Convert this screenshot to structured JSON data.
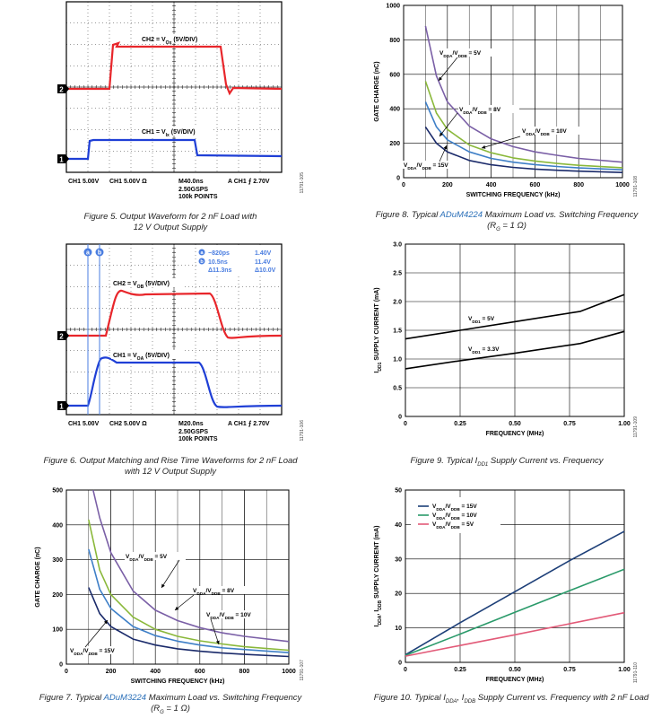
{
  "fig5": {
    "ch2_label": "CH2 = V",
    "ch2_sub": "Ox",
    "ch2_rest": " (5V/DIV)",
    "ch1_label": "CH1 = V",
    "ch1_sub": "Ix",
    "ch1_rest": " (5V/DIV)",
    "marker2": "2",
    "marker1": "1",
    "footer_ch1": "CH1  5.00V",
    "footer_ch2": "CH1  5.00V  Ω",
    "footer_time": "M40.0ns",
    "footer_trig": "A  CH1 ⨍ 2.70V",
    "footer_rate": "2.50GSPS",
    "footer_points": "100k POINTS",
    "side_id": "11791-105",
    "caption_line1": "Figure 5. Output Waveform for 2 nF Load with",
    "caption_line2": "12 V Output Supply",
    "colors": {
      "ch2": "#e8262b",
      "ch1": "#1f3fd6"
    }
  },
  "fig6": {
    "ch2_label": "CH2 = V",
    "ch2_sub": "OB",
    "ch2_rest": " (5V/DIV)",
    "ch1_label": "CH1 = V",
    "ch1_sub": "OA",
    "ch1_rest": " (5V/DIV)",
    "cursor_a": "a",
    "cursor_b": "b",
    "meas_a_time": "−820ps",
    "meas_a_volt": "1.40V",
    "meas_b_time": "10.5ns",
    "meas_b_volt": "11.4V",
    "meas_delta_time": "Δ11.3ns",
    "meas_delta_volt": "Δ10.0V",
    "marker2": "2",
    "marker1": "1",
    "footer_ch1": "CH1  5.00V",
    "footer_ch2": "CH2  5.00V  Ω",
    "footer_time": "M20.0ns",
    "footer_trig": "A  CH1 ⨍ 2.70V",
    "footer_rate": "2.50GSPS",
    "footer_points": "100k POINTS",
    "side_id": "11791-106",
    "caption_line1": "Figure 6. Output Matching and Rise Time Waveforms for 2 nF Load",
    "caption_line2": "with 12 V Output Supply",
    "colors": {
      "ch2": "#e8262b",
      "ch1": "#1f3fd6",
      "cursor": "#4a7de0"
    }
  },
  "fig7": {
    "caption_prefix": "Figure 7. Typical ",
    "caption_link": "ADuM3224",
    "caption_suffix": " Maximum Load vs. Switching Frequency",
    "caption_line2": "(R",
    "caption_line2_sub": "G",
    "caption_line2_rest": " = 1 Ω)",
    "side_id": "11791-107",
    "chart_data": {
      "type": "line",
      "xlabel": "SWITCHING FREQUENCY (kHz)",
      "ylabel": "GATE CHARGE (nC)",
      "xlim": [
        0,
        1000
      ],
      "ylim": [
        0,
        500
      ],
      "xticks": [
        0,
        200,
        400,
        600,
        800,
        1000
      ],
      "yticks": [
        0,
        100,
        200,
        300,
        400,
        500
      ],
      "series": [
        {
          "name": "V_DDA/V_DDB = 5V",
          "color": "#7a5fa6",
          "x": [
            120,
            150,
            200,
            300,
            400,
            500,
            600,
            700,
            800,
            1000
          ],
          "y": [
            500,
            420,
            320,
            210,
            155,
            125,
            105,
            90,
            80,
            65
          ]
        },
        {
          "name": "V_DDA/V_DDB = 8V",
          "color": "#8ab83a",
          "x": [
            100,
            150,
            200,
            300,
            400,
            500,
            600,
            700,
            800,
            1000
          ],
          "y": [
            415,
            270,
            200,
            135,
            100,
            80,
            67,
            58,
            50,
            40
          ]
        },
        {
          "name": "V_DDA/V_DDB = 10V",
          "color": "#3e7fc7",
          "x": [
            100,
            150,
            200,
            300,
            400,
            500,
            600,
            700,
            800,
            1000
          ],
          "y": [
            330,
            215,
            160,
            108,
            82,
            66,
            55,
            47,
            42,
            33
          ]
        },
        {
          "name": "V_DDA/V_DDB = 15V",
          "color": "#1a2a6a",
          "x": [
            100,
            150,
            200,
            300,
            400,
            500,
            600,
            700,
            800,
            1000
          ],
          "y": [
            220,
            145,
            108,
            72,
            55,
            44,
            37,
            32,
            28,
            22
          ]
        }
      ],
      "labels": [
        {
          "text": "V",
          "sub1": "DDA",
          "mid": "/V",
          "sub2": "DDB",
          "rest": " = 5V"
        },
        {
          "text": "V",
          "sub1": "DDA",
          "mid": "/V",
          "sub2": "DDB",
          "rest": " = 8V"
        },
        {
          "text": "V",
          "sub1": "DDA",
          "mid": "/V",
          "sub2": "DDB",
          "rest": " = 10V"
        },
        {
          "text": "V",
          "sub1": "DDA",
          "mid": "/V",
          "sub2": "DDB",
          "rest": " = 15V"
        }
      ]
    }
  },
  "fig8": {
    "caption_prefix": "Figure 8. Typical ",
    "caption_link": "ADuM4224",
    "caption_suffix": " Maximum Load vs. Switching Frequency",
    "caption_line2": "(R",
    "caption_line2_sub": "G",
    "caption_line2_rest": " = 1 Ω)",
    "side_id": "11791-108",
    "chart_data": {
      "type": "line",
      "xlabel": "SWITCHING FREQUENCY (kHz)",
      "ylabel": "GATE CHARGE (nC)",
      "xlim": [
        0,
        1000
      ],
      "ylim": [
        0,
        1000
      ],
      "xticks": [
        0,
        200,
        400,
        600,
        800,
        1000
      ],
      "yticks": [
        0,
        200,
        400,
        600,
        800,
        1000
      ],
      "series": [
        {
          "name": "V_DDA/V_DDB = 5V",
          "color": "#7a5fa6",
          "x": [
            100,
            150,
            200,
            300,
            400,
            500,
            600,
            700,
            800,
            1000
          ],
          "y": [
            880,
            590,
            440,
            300,
            225,
            180,
            150,
            130,
            112,
            90
          ]
        },
        {
          "name": "V_DDA/V_DDB = 8V",
          "color": "#8ab83a",
          "x": [
            100,
            150,
            200,
            300,
            400,
            500,
            600,
            700,
            800,
            1000
          ],
          "y": [
            560,
            375,
            280,
            190,
            145,
            115,
            97,
            83,
            72,
            58
          ]
        },
        {
          "name": "V_DDA/V_DDB = 10V",
          "color": "#3e7fc7",
          "x": [
            100,
            150,
            200,
            300,
            400,
            500,
            600,
            700,
            800,
            1000
          ],
          "y": [
            440,
            295,
            220,
            150,
            112,
            90,
            76,
            65,
            57,
            46
          ]
        },
        {
          "name": "V_DDA/V_DDB = 15V",
          "color": "#1a2a6a",
          "x": [
            100,
            150,
            200,
            300,
            400,
            500,
            600,
            700,
            800,
            1000
          ],
          "y": [
            295,
            200,
            150,
            100,
            75,
            60,
            50,
            43,
            38,
            30
          ]
        }
      ],
      "labels": [
        {
          "text": "V",
          "sub1": "DDA",
          "mid": "/V",
          "sub2": "DDB",
          "rest": " = 5V"
        },
        {
          "text": "V",
          "sub1": "DDA",
          "mid": "/V",
          "sub2": "DDB",
          "rest": " = 8V"
        },
        {
          "text": "V",
          "sub1": "DDA",
          "mid": "/V",
          "sub2": "DDB",
          "rest": " = 10V"
        },
        {
          "text": "V",
          "sub1": "DDA",
          "mid": "/V",
          "sub2": "DDB",
          "rest": " = 15V"
        }
      ]
    }
  },
  "fig9": {
    "caption_prefix": "Figure 9. Typical I",
    "caption_sub": "DD1",
    "caption_suffix": " Supply Current vs. Frequency",
    "side_id": "11791-109",
    "chart_data": {
      "type": "line",
      "xlabel": "FREQUENCY (MHz)",
      "ylabel_pre": "I",
      "ylabel_sub": "DD1",
      "ylabel_rest": " SUPPLY CURRENT (mA)",
      "xlim": [
        0,
        1.0
      ],
      "ylim": [
        0,
        3.0
      ],
      "xticks": [
        0,
        0.25,
        0.5,
        0.75,
        1.0
      ],
      "xtick_labels": [
        "0",
        "0.25",
        "0.50",
        "0.75",
        "1.00"
      ],
      "yticks": [
        0,
        0.5,
        1.0,
        1.5,
        2.0,
        2.5,
        3.0
      ],
      "ytick_labels": [
        "0",
        "0.5",
        "1.0",
        "1.5",
        "2.0",
        "2.5",
        "3.0"
      ],
      "series": [
        {
          "name": "V_DD1 = 5V",
          "color": "#000000",
          "x": [
            0,
            0.25,
            0.5,
            0.8,
            1.0
          ],
          "y": [
            1.35,
            1.5,
            1.65,
            1.83,
            2.12
          ]
        },
        {
          "name": "V_DD1 = 3.3V",
          "color": "#000000",
          "x": [
            0,
            0.25,
            0.5,
            0.8,
            1.0
          ],
          "y": [
            0.83,
            0.97,
            1.1,
            1.27,
            1.48
          ]
        }
      ],
      "labels": [
        {
          "text": "V",
          "sub1": "DD1",
          "rest": " = 5V"
        },
        {
          "text": "V",
          "sub1": "DD1",
          "rest": " = 3.3V"
        }
      ]
    }
  },
  "fig10": {
    "caption_prefix": "Figure 10. Typical I",
    "caption_sub1": "DDA",
    "caption_mid": ", I",
    "caption_sub2": "DDB",
    "caption_suffix": " Supply Current vs. Frequency with 2 nF Load",
    "side_id": "11791-110",
    "chart_data": {
      "type": "line",
      "xlabel": "FREQUENCY (MHz)",
      "ylabel_pre": "I",
      "ylabel_sub1": "DDA",
      "ylabel_mid": ", I",
      "ylabel_sub2": "DDB",
      "ylabel_rest": " SUPPLY CURRENT (mA)",
      "xlim": [
        0,
        1.0
      ],
      "ylim": [
        0,
        50
      ],
      "xticks": [
        0,
        0.25,
        0.5,
        0.75,
        1.0
      ],
      "xtick_labels": [
        "0",
        "0.25",
        "0.50",
        "0.75",
        "1.00"
      ],
      "yticks": [
        0,
        10,
        20,
        30,
        40,
        50
      ],
      "legend_position": "top-left",
      "series": [
        {
          "name": "V_DDA/V_DDB = 15V",
          "color": "#1d3f78",
          "x": [
            0,
            0.25,
            0.5,
            0.75,
            1.0
          ],
          "y": [
            2.2,
            11.5,
            20.5,
            29.5,
            38
          ]
        },
        {
          "name": "V_DDA/V_DDB = 10V",
          "color": "#2a9a6a",
          "x": [
            0,
            0.25,
            0.5,
            0.75,
            1.0
          ],
          "y": [
            2.0,
            8.2,
            14.5,
            20.8,
            27
          ]
        },
        {
          "name": "V_DDA/V_DDB = 5V",
          "color": "#e25a78",
          "x": [
            0,
            0.25,
            0.5,
            0.75,
            1.0
          ],
          "y": [
            1.8,
            4.9,
            8.0,
            11.2,
            14.4
          ]
        }
      ],
      "legend": [
        {
          "text": "V",
          "sub1": "DDA",
          "mid": "/V",
          "sub2": "DDB",
          "rest": " = 15V"
        },
        {
          "text": "V",
          "sub1": "DDA",
          "mid": "/V",
          "sub2": "DDB",
          "rest": " = 10V"
        },
        {
          "text": "V",
          "sub1": "DDA",
          "mid": "/V",
          "sub2": "DDB",
          "rest": " = 5V"
        }
      ]
    }
  }
}
